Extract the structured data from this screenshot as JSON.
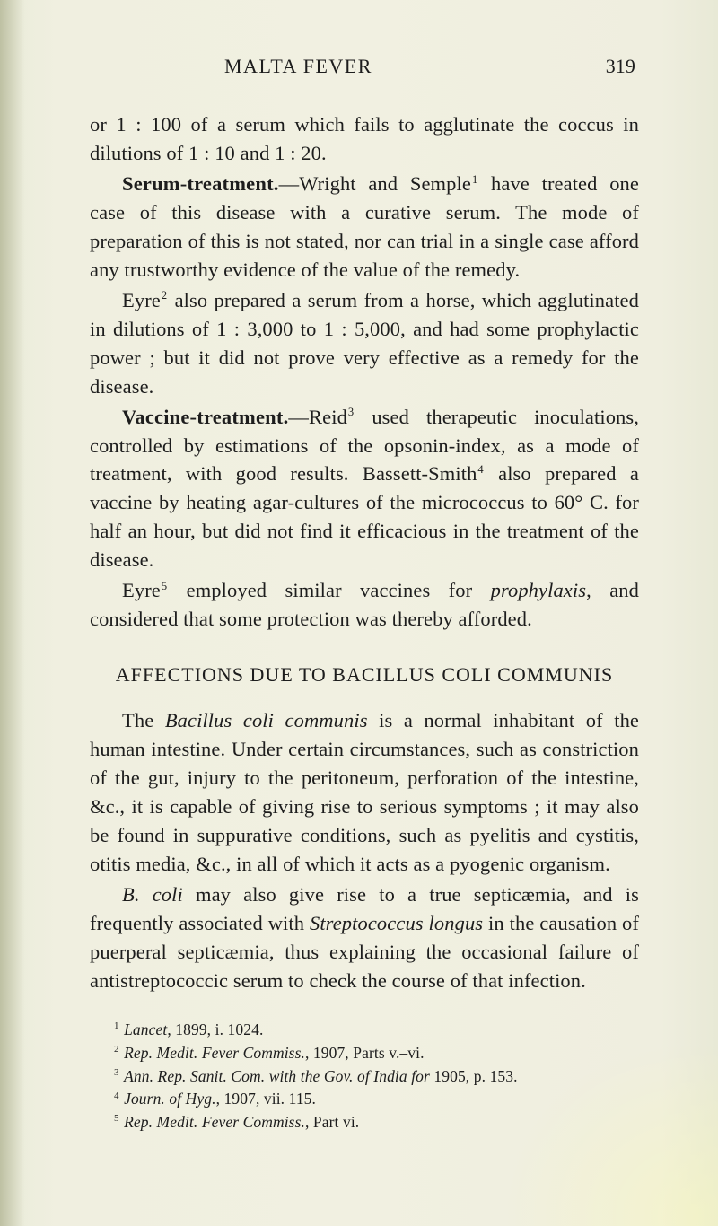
{
  "header": {
    "running_title": "MALTA FEVER",
    "page_number": "319"
  },
  "body": {
    "p1": "or 1 : 100 of a serum which fails to agglutinate the coccus in dilutions of 1 : 10 and 1 : 20.",
    "p2_lede": "Serum-treatment.",
    "p2_rest_a": "—Wright and Semple",
    "p2_fn1": "1",
    "p2_rest_b": " have treated one case of this disease with a curative serum. The mode of preparation of this is not stated, nor can trial in a single case afford any trustworthy evidence of the value of the remedy.",
    "p3_a": "Eyre",
    "p3_fn2": "2",
    "p3_b": " also prepared a serum from a horse, which agglutinated in dilutions of 1 : 3,000 to 1 : 5,000, and had some prophylactic power ; but it did not prove very effective as a remedy for the disease.",
    "p4_lede": "Vaccine-treatment.",
    "p4_a": "—Reid",
    "p4_fn3": "3",
    "p4_b": " used therapeutic inoculations, controlled by estimations of the opsonin-index, as a mode of treatment, with good results. Bassett-Smith",
    "p4_fn4": "4",
    "p4_c": " also prepared a vaccine by heating agar-cultures of the micrococcus to 60° C. for half an hour, but did not find it efficacious in the treatment of the disease.",
    "p5_a": "Eyre",
    "p5_fn5": "5",
    "p5_b": " employed similar vaccines for ",
    "p5_i": "prophylaxis",
    "p5_c": ", and considered that some protection was thereby afforded.",
    "section_head": "AFFECTIONS DUE TO BACILLUS COLI COMMUNIS",
    "p6_a": "The ",
    "p6_i": "Bacillus coli communis",
    "p6_b": " is a normal inhabitant of the human intestine. Under certain circumstances, such as constriction of the gut, injury to the peritoneum, perforation of the intestine, &c., it is capable of giving rise to serious symptoms ; it may also be found in suppurative conditions, such as pyelitis and cystitis, otitis media, &c., in all of which it acts as a pyogenic organism.",
    "p7_i1": "B. coli",
    "p7_a": " may also give rise to a true septicæmia, and is frequently associated with ",
    "p7_i2": "Streptococcus longus",
    "p7_b": " in the causation of puerperal septicæmia, thus explaining the occasional failure of antistreptococcic serum to check the course of that infection."
  },
  "footnotes": {
    "f1_n": "1",
    "f1_i": "Lancet",
    "f1_t": ", 1899, i. 1024.",
    "f2_n": "2",
    "f2_i": "Rep. Medit. Fever Commiss.",
    "f2_t": ", 1907, Parts v.–vi.",
    "f3_n": "3",
    "f3_i": "Ann. Rep. Sanit. Com. with the Gov. of India for",
    "f3_t": " 1905, p. 153.",
    "f4_n": "4",
    "f4_i": "Journ. of Hyg.",
    "f4_t": ", 1907, vii. 115.",
    "f5_n": "5",
    "f5_i": "Rep. Medit. Fever Commiss.",
    "f5_t": ", Part vi."
  }
}
